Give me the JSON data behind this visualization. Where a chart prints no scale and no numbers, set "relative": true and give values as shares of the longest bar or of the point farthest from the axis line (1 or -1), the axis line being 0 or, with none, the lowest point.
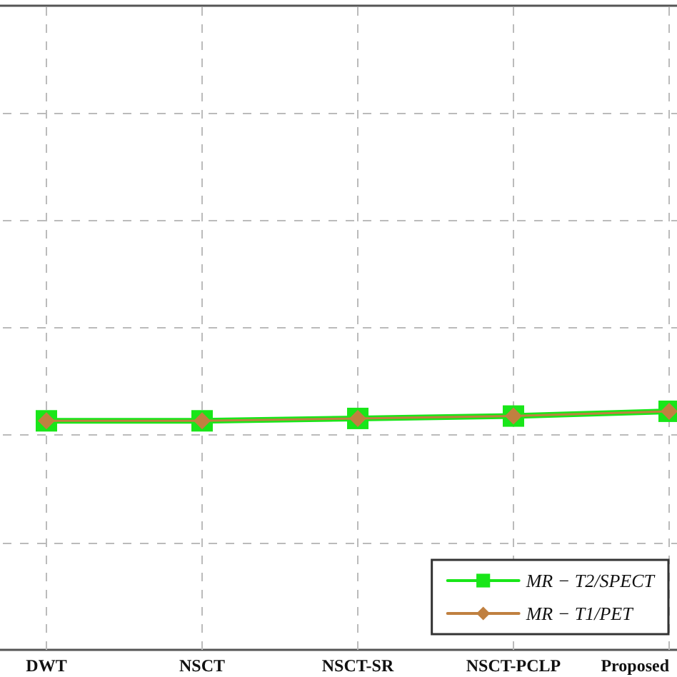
{
  "chart_data": {
    "type": "line",
    "relative": true,
    "categories": [
      "DWT",
      "NSCT",
      "NSCT-SR",
      "NSCT-PCLP",
      "Proposed"
    ],
    "series": [
      {
        "name": "MR − T2/SPECT",
        "color": "#19e619",
        "marker": "square",
        "values": [
          0.96,
          0.96,
          0.97,
          0.98,
          1.0
        ]
      },
      {
        "name": "MR − T1/PET",
        "color": "#c08040",
        "marker": "diamond",
        "values": [
          0.96,
          0.96,
          0.97,
          0.98,
          1.0
        ]
      }
    ],
    "grid": true,
    "legend": "bottom right",
    "line_style": "solid"
  }
}
